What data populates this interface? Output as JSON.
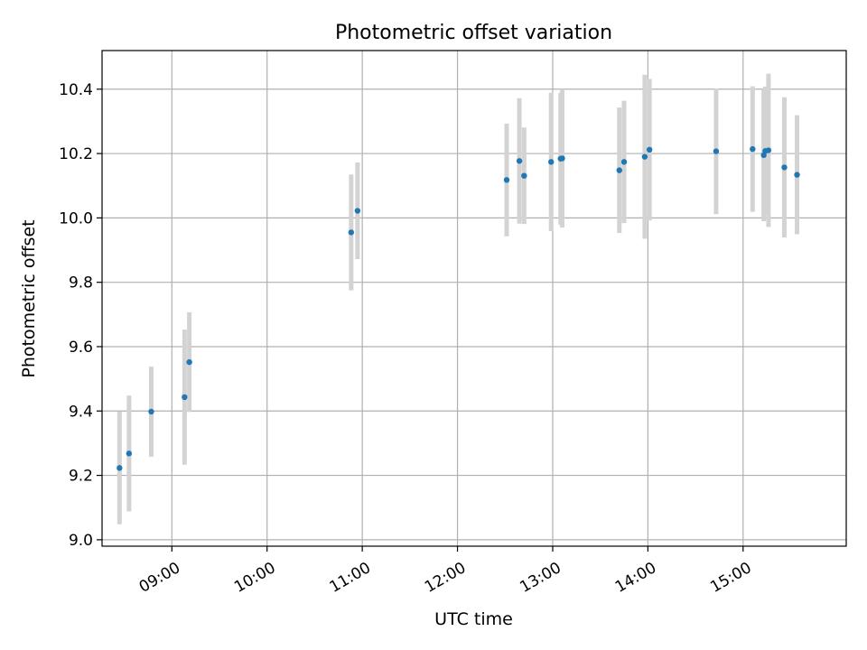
{
  "chart_data": {
    "type": "scatter",
    "title": "Photometric offset variation",
    "xlabel": "UTC time",
    "ylabel": "Photometric offset",
    "xlim_minutes": [
      496,
      965
    ],
    "ylim": [
      8.98,
      10.52
    ],
    "x_ticks": [
      "09:00",
      "10:00",
      "11:00",
      "12:00",
      "13:00",
      "14:00",
      "15:00"
    ],
    "y_ticks": [
      "9.0",
      "9.2",
      "9.4",
      "9.6",
      "9.8",
      "10.0",
      "10.2",
      "10.4"
    ],
    "grid": true,
    "colors": {
      "point": "#1f77b4",
      "errorbar": "#d3d3d3",
      "grid": "#b0b0b0"
    },
    "points": [
      {
        "x": "08:27",
        "y": 9.223,
        "err": 0.175
      },
      {
        "x": "08:33",
        "y": 9.268,
        "err": 0.18
      },
      {
        "x": "08:47",
        "y": 9.398,
        "err": 0.14
      },
      {
        "x": "09:08",
        "y": 9.443,
        "err": 0.21
      },
      {
        "x": "09:11",
        "y": 9.552,
        "err": 0.155
      },
      {
        "x": "10:53",
        "y": 9.955,
        "err": 0.18
      },
      {
        "x": "10:57",
        "y": 10.022,
        "err": 0.15
      },
      {
        "x": "12:31",
        "y": 10.118,
        "err": 0.175
      },
      {
        "x": "12:39",
        "y": 10.177,
        "err": 0.195
      },
      {
        "x": "12:42",
        "y": 10.131,
        "err": 0.15
      },
      {
        "x": "12:59",
        "y": 10.174,
        "err": 0.215
      },
      {
        "x": "13:05",
        "y": 10.184,
        "err": 0.205
      },
      {
        "x": "13:06",
        "y": 10.185,
        "err": 0.215
      },
      {
        "x": "13:42",
        "y": 10.148,
        "err": 0.195
      },
      {
        "x": "13:45",
        "y": 10.174,
        "err": 0.19
      },
      {
        "x": "13:58",
        "y": 10.19,
        "err": 0.255
      },
      {
        "x": "14:01",
        "y": 10.212,
        "err": 0.22
      },
      {
        "x": "14:43",
        "y": 10.207,
        "err": 0.195
      },
      {
        "x": "15:06",
        "y": 10.214,
        "err": 0.195
      },
      {
        "x": "15:13",
        "y": 10.195,
        "err": 0.205
      },
      {
        "x": "15:14",
        "y": 10.208,
        "err": 0.2
      },
      {
        "x": "15:16",
        "y": 10.21,
        "err": 0.238
      },
      {
        "x": "15:26",
        "y": 10.157,
        "err": 0.218
      },
      {
        "x": "15:34",
        "y": 10.134,
        "err": 0.185
      }
    ]
  }
}
